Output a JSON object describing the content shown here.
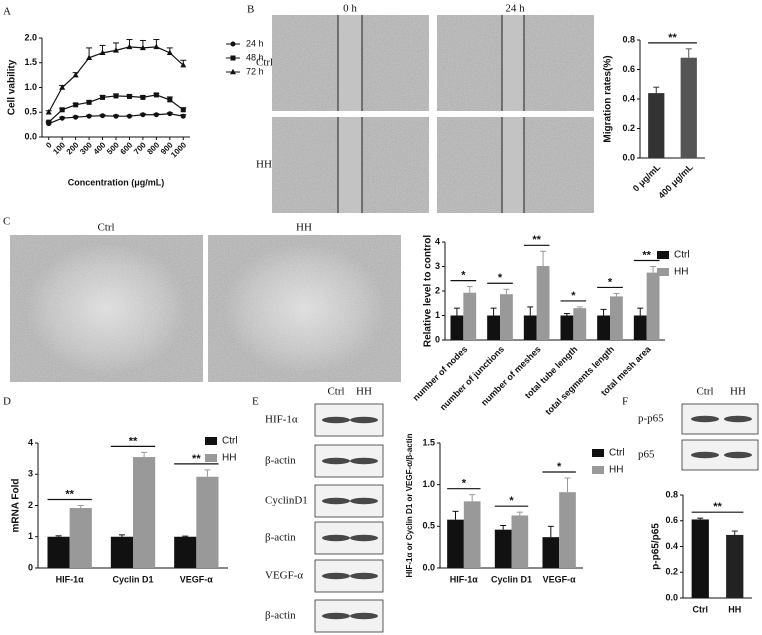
{
  "figure": {
    "panel_labels": [
      "A",
      "B",
      "C",
      "D",
      "E",
      "F"
    ],
    "b_images": {
      "columns": [
        "0 h",
        "24 h"
      ],
      "rows": [
        "Ctrl",
        "HH"
      ]
    },
    "c_images": {
      "columns": [
        "Ctrl",
        "HH"
      ]
    },
    "e_blot": {
      "columns": [
        "Ctrl",
        "HH"
      ],
      "rows": [
        "HIF-1α",
        "β-actin",
        "CyclinD1",
        "β-actin",
        "VEGF-α",
        "β-actin"
      ]
    },
    "f_blot": {
      "columns": [
        "Ctrl",
        "HH"
      ],
      "rows": [
        "p-p65",
        "p65"
      ]
    }
  },
  "chart_data": [
    {
      "type": "line",
      "xlabel": "Concentration (μg/mL)",
      "ylabel": "Cell vability",
      "x": [
        0,
        100,
        200,
        300,
        400,
        500,
        600,
        700,
        800,
        900,
        1000
      ],
      "xlim": [
        -50,
        1050
      ],
      "xticks": [
        0,
        100,
        200,
        300,
        400,
        500,
        600,
        700,
        800,
        900,
        1000
      ],
      "ylim": [
        0,
        2
      ],
      "yticks": [
        {
          "value": 0,
          "label": "0.0"
        },
        {
          "value": 0.5,
          "label": "0.5"
        },
        {
          "value": 1,
          "label": "1.0"
        },
        {
          "value": 1.5,
          "label": "1.5"
        },
        {
          "value": 2,
          "label": "2.0"
        }
      ],
      "series": [
        {
          "name": "24 h",
          "color": "#111111",
          "marker": "circle",
          "values": [
            0.27,
            0.38,
            0.4,
            0.42,
            0.43,
            0.42,
            0.42,
            0.45,
            0.45,
            0.47,
            0.42
          ],
          "errors": [
            0.02,
            0.02,
            0.02,
            0.02,
            0.02,
            0.02,
            0.02,
            0.02,
            0.02,
            0.02,
            0.03
          ]
        },
        {
          "name": "48 h",
          "color": "#111111",
          "marker": "square",
          "values": [
            0.3,
            0.55,
            0.65,
            0.7,
            0.8,
            0.83,
            0.82,
            0.8,
            0.85,
            0.75,
            0.55
          ],
          "errors": [
            0.02,
            0.03,
            0.03,
            0.03,
            0.04,
            0.04,
            0.03,
            0.03,
            0.03,
            0.06,
            0.04
          ]
        },
        {
          "name": "72 h",
          "color": "#111111",
          "marker": "triangle",
          "values": [
            0.5,
            1.0,
            1.25,
            1.6,
            1.7,
            1.75,
            1.82,
            1.8,
            1.82,
            1.7,
            1.45
          ],
          "errors": [
            0.03,
            0.04,
            0.05,
            0.2,
            0.15,
            0.15,
            0.15,
            0.15,
            0.15,
            0.1,
            0.1
          ]
        }
      ]
    },
    {
      "type": "bar",
      "ylabel": "Migration rates(%)",
      "categories": [
        "0 μg/mL",
        "400 μg/mL"
      ],
      "values": [
        0.44,
        0.68
      ],
      "errors": [
        0.04,
        0.06
      ],
      "colors": [
        "#333333",
        "#555555"
      ],
      "ylim": [
        0,
        0.8
      ],
      "yticks": [
        {
          "value": 0,
          "label": "0.0"
        },
        {
          "value": 0.2,
          "label": "0.2"
        },
        {
          "value": 0.4,
          "label": "0.4"
        },
        {
          "value": 0.6,
          "label": "0.6"
        },
        {
          "value": 0.8,
          "label": "0.8"
        }
      ],
      "significance": [
        "**"
      ]
    },
    {
      "type": "bar",
      "ylabel": "Relative level to control",
      "categories": [
        "number of nodes",
        "number of junctions",
        "number of meshes",
        "total tube length",
        "total segments length",
        "total mesh area"
      ],
      "series": [
        {
          "name": "Ctrl",
          "color": "#111111",
          "values": [
            1,
            1,
            1,
            1,
            1,
            1
          ],
          "errors": [
            0.3,
            0.3,
            0.35,
            0.08,
            0.25,
            0.3
          ]
        },
        {
          "name": "HH",
          "color": "#999999",
          "values": [
            1.93,
            1.87,
            3.02,
            1.3,
            1.78,
            2.75
          ],
          "errors": [
            0.25,
            0.2,
            0.6,
            0.05,
            0.12,
            0.25
          ]
        }
      ],
      "ylim": [
        0,
        4
      ],
      "yticks": [
        0,
        1,
        2,
        3,
        4
      ],
      "significance": [
        "*",
        "*",
        "**",
        "*",
        "*",
        "**"
      ]
    },
    {
      "type": "bar",
      "ylabel": "mRNA Fold",
      "categories": [
        "HIF-1α",
        "Cyclin D1",
        "VEGF-α"
      ],
      "series": [
        {
          "name": "Ctrl",
          "color": "#111111",
          "values": [
            1,
            1,
            1
          ],
          "errors": [
            0.03,
            0.06,
            0.02
          ]
        },
        {
          "name": "HH",
          "color": "#999999",
          "values": [
            1.92,
            3.55,
            2.92
          ],
          "errors": [
            0.08,
            0.15,
            0.22
          ]
        }
      ],
      "ylim": [
        0,
        4
      ],
      "yticks": [
        0,
        1,
        2,
        3,
        4
      ],
      "significance": [
        "**",
        "**",
        "**"
      ]
    },
    {
      "type": "bar",
      "ylabel": "HIF-1α or Cyclin D1 or VEGF-α/β-actin",
      "categories": [
        "HIF-1α",
        "Cyclin D1",
        "VEGF-α"
      ],
      "series": [
        {
          "name": "Ctrl",
          "color": "#111111",
          "values": [
            0.58,
            0.46,
            0.37
          ],
          "errors": [
            0.1,
            0.05,
            0.13
          ]
        },
        {
          "name": "HH",
          "color": "#999999",
          "values": [
            0.8,
            0.63,
            0.91
          ],
          "errors": [
            0.08,
            0.04,
            0.17
          ]
        }
      ],
      "ylim": [
        0,
        1.5
      ],
      "yticks": [
        {
          "value": 0,
          "label": "0.0"
        },
        {
          "value": 0.5,
          "label": "0.5"
        },
        {
          "value": 1,
          "label": "1.0"
        },
        {
          "value": 1.5,
          "label": "1.5"
        }
      ],
      "significance": [
        "*",
        "*",
        "*"
      ]
    },
    {
      "type": "bar",
      "ylabel": "p-p65/p65",
      "categories": [
        "Ctrl",
        "HH"
      ],
      "values": [
        0.61,
        0.49
      ],
      "errors": [
        0.01,
        0.03
      ],
      "colors": [
        "#111111",
        "#222222"
      ],
      "ylim": [
        0,
        0.8
      ],
      "yticks": [
        {
          "value": 0,
          "label": "0.0"
        },
        {
          "value": 0.2,
          "label": "0.2"
        },
        {
          "value": 0.4,
          "label": "0.4"
        },
        {
          "value": 0.6,
          "label": "0.6"
        },
        {
          "value": 0.8,
          "label": "0.8"
        }
      ],
      "significance": [
        "**"
      ]
    }
  ]
}
